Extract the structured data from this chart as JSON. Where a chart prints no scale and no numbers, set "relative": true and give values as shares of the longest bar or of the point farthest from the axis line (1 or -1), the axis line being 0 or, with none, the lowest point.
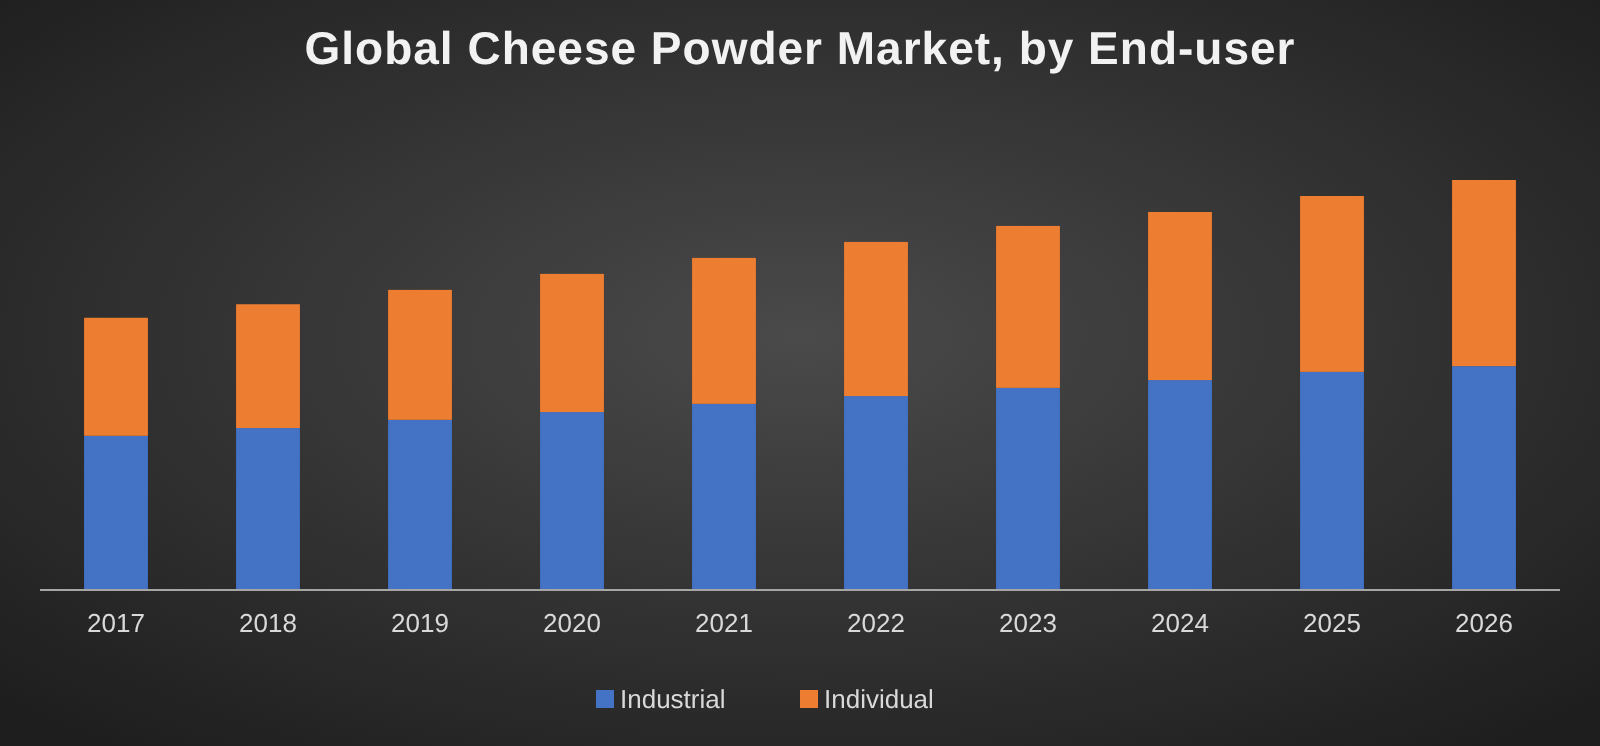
{
  "chart_data": {
    "type": "bar",
    "title": "Global Cheese Powder Market, by End-user",
    "relative": true,
    "stacked": true,
    "legend": "bottom",
    "categories": [
      "2017",
      "2018",
      "2019",
      "2020",
      "2021",
      "2022",
      "2023",
      "2024",
      "2025",
      "2026"
    ],
    "series": [
      {
        "name": "Industrial",
        "color": "#4472c4",
        "values": [
          0.376,
          0.395,
          0.415,
          0.434,
          0.454,
          0.473,
          0.493,
          0.512,
          0.532,
          0.546
        ]
      },
      {
        "name": "Individual",
        "color": "#ed7d31",
        "values": [
          0.288,
          0.302,
          0.317,
          0.337,
          0.356,
          0.376,
          0.395,
          0.41,
          0.429,
          0.454
        ]
      }
    ]
  }
}
